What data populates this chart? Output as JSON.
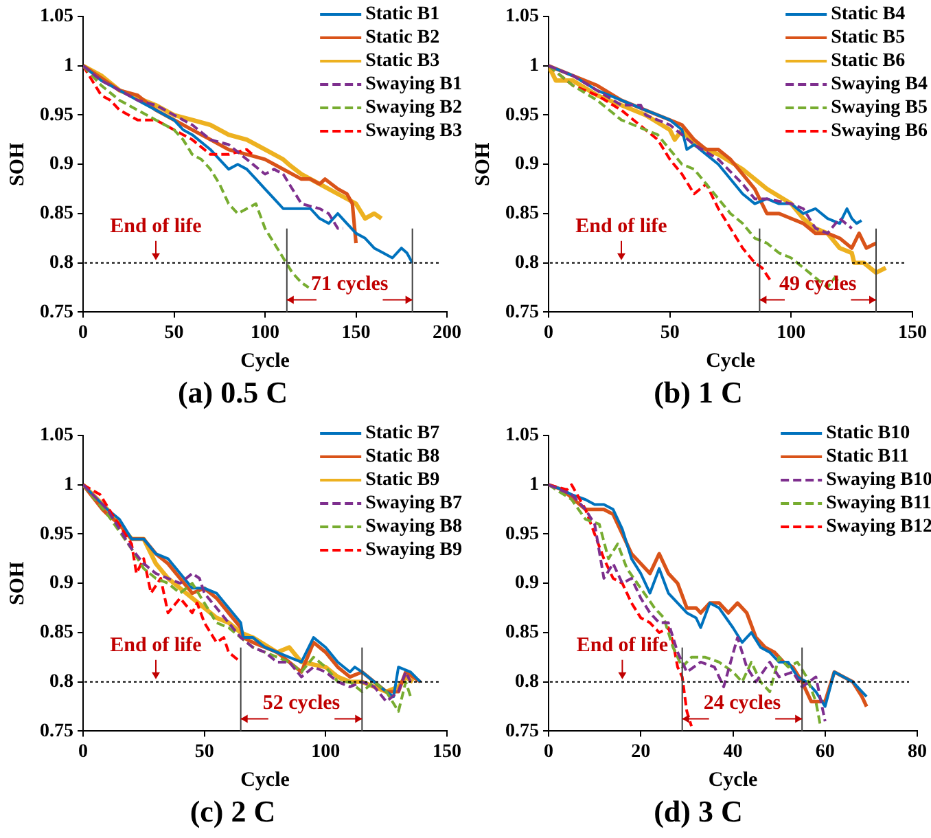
{
  "chart_data": [
    {
      "type": "line",
      "title": "(a) 0.5 C",
      "xlabel": "Cycle",
      "ylabel": "SOH",
      "xlim": [
        0,
        200
      ],
      "ylim": [
        0.75,
        1.05
      ],
      "xticks": [
        0,
        50,
        100,
        150,
        200
      ],
      "yticks": [
        0.75,
        0.8,
        0.85,
        0.9,
        0.95,
        1,
        1.05
      ],
      "grid": false,
      "legend": "top right",
      "series": [
        {
          "name": "Static B1",
          "color": "#0072bd",
          "line_style": "solid",
          "x": [
            0,
            10,
            20,
            30,
            40,
            50,
            55,
            60,
            70,
            75,
            80,
            85,
            90,
            95,
            100,
            105,
            110,
            115,
            120,
            125,
            130,
            135,
            140,
            145,
            150,
            155,
            160,
            165,
            170,
            175,
            178,
            181
          ],
          "values": [
            1,
            0.985,
            0.975,
            0.965,
            0.955,
            0.945,
            0.935,
            0.93,
            0.915,
            0.905,
            0.895,
            0.9,
            0.895,
            0.885,
            0.875,
            0.865,
            0.855,
            0.855,
            0.855,
            0.855,
            0.845,
            0.84,
            0.85,
            0.84,
            0.83,
            0.825,
            0.815,
            0.81,
            0.805,
            0.815,
            0.81,
            0.8
          ]
        },
        {
          "name": "Static B2",
          "color": "#d95319",
          "line_style": "solid",
          "x": [
            0,
            20,
            30,
            40,
            50,
            60,
            70,
            80,
            90,
            100,
            110,
            115,
            120,
            125,
            130,
            133,
            140,
            145,
            148,
            150
          ],
          "values": [
            1,
            0.975,
            0.97,
            0.955,
            0.945,
            0.935,
            0.925,
            0.915,
            0.91,
            0.905,
            0.895,
            0.89,
            0.885,
            0.885,
            0.88,
            0.885,
            0.875,
            0.87,
            0.86,
            0.82
          ]
        },
        {
          "name": "Static B3",
          "color": "#edb120",
          "line_style": "solid",
          "x": [
            0,
            10,
            20,
            40,
            50,
            60,
            70,
            80,
            90,
            100,
            110,
            113,
            120,
            130,
            140,
            150,
            155,
            160,
            164
          ],
          "values": [
            1,
            0.99,
            0.975,
            0.96,
            0.95,
            0.945,
            0.94,
            0.93,
            0.925,
            0.915,
            0.905,
            0.9,
            0.89,
            0.88,
            0.87,
            0.86,
            0.845,
            0.85,
            0.845
          ]
        },
        {
          "name": "Swaying B1",
          "color": "#7e2f8e",
          "line_style": "dashed",
          "x": [
            0,
            10,
            20,
            30,
            40,
            50,
            60,
            70,
            80,
            90,
            100,
            105,
            110,
            120,
            130,
            135,
            140,
            143
          ],
          "values": [
            1,
            0.985,
            0.975,
            0.965,
            0.96,
            0.95,
            0.94,
            0.925,
            0.92,
            0.905,
            0.89,
            0.895,
            0.89,
            0.86,
            0.855,
            0.85,
            0.835,
            0.835
          ]
        },
        {
          "name": "Swaying B2",
          "color": "#77ac30",
          "line_style": "dashed",
          "x": [
            0,
            10,
            20,
            30,
            40,
            50,
            55,
            60,
            65,
            70,
            75,
            80,
            85,
            90,
            95,
            100,
            105,
            110,
            115,
            120,
            124
          ],
          "values": [
            1,
            0.98,
            0.965,
            0.955,
            0.945,
            0.935,
            0.925,
            0.91,
            0.905,
            0.895,
            0.88,
            0.86,
            0.85,
            0.855,
            0.86,
            0.835,
            0.82,
            0.805,
            0.79,
            0.78,
            0.775
          ]
        },
        {
          "name": "Swaying B3",
          "color": "#ff0000",
          "line_style": "dashed",
          "x": [
            0,
            5,
            10,
            15,
            20,
            30,
            40,
            50,
            55,
            60,
            70,
            80,
            90,
            93
          ],
          "values": [
            1,
            0.985,
            0.97,
            0.965,
            0.955,
            0.945,
            0.945,
            0.935,
            0.93,
            0.925,
            0.91,
            0.91,
            0.915,
            0.91
          ]
        }
      ],
      "ref_lines": [
        {
          "axis": "y",
          "value": 0.8,
          "label": "End of life",
          "color": "#000000",
          "line_style": "dotted"
        },
        {
          "axis": "x",
          "value": 112,
          "color": "#404040"
        },
        {
          "axis": "x",
          "value": 181,
          "color": "#404040"
        }
      ],
      "annotations": [
        "71 cycles"
      ]
    },
    {
      "type": "line",
      "title": "(b) 1 C",
      "xlabel": "Cycle",
      "ylabel": "SOH",
      "xlim": [
        0,
        150
      ],
      "ylim": [
        0.75,
        1.05
      ],
      "xticks": [
        0,
        50,
        100,
        150
      ],
      "yticks": [
        0.75,
        0.8,
        0.85,
        0.9,
        0.95,
        1,
        1.05
      ],
      "grid": false,
      "legend": "top right",
      "series": [
        {
          "name": "Static B4",
          "color": "#0072bd",
          "line_style": "solid",
          "x": [
            0,
            10,
            20,
            30,
            40,
            45,
            50,
            55,
            57,
            60,
            65,
            70,
            75,
            80,
            85,
            90,
            95,
            100,
            105,
            110,
            115,
            120,
            123,
            125,
            127,
            129
          ],
          "values": [
            1,
            0.99,
            0.975,
            0.965,
            0.955,
            0.95,
            0.945,
            0.935,
            0.915,
            0.92,
            0.91,
            0.9,
            0.885,
            0.87,
            0.86,
            0.865,
            0.86,
            0.86,
            0.85,
            0.855,
            0.845,
            0.84,
            0.855,
            0.845,
            0.84,
            0.843
          ]
        },
        {
          "name": "Static B5",
          "color": "#d95319",
          "line_style": "solid",
          "x": [
            0,
            10,
            20,
            30,
            40,
            50,
            55,
            60,
            65,
            70,
            75,
            80,
            85,
            90,
            95,
            100,
            105,
            110,
            115,
            120,
            125,
            128,
            131,
            135
          ],
          "values": [
            1,
            0.99,
            0.98,
            0.965,
            0.955,
            0.945,
            0.94,
            0.925,
            0.915,
            0.915,
            0.905,
            0.89,
            0.875,
            0.85,
            0.85,
            0.845,
            0.84,
            0.83,
            0.83,
            0.825,
            0.815,
            0.83,
            0.815,
            0.82
          ]
        },
        {
          "name": "Static B6",
          "color": "#edb120",
          "line_style": "solid",
          "x": [
            0,
            3,
            10,
            20,
            30,
            40,
            50,
            52,
            55,
            60,
            70,
            80,
            90,
            100,
            105,
            110,
            115,
            120,
            125,
            126,
            130,
            135,
            139
          ],
          "values": [
            1,
            0.985,
            0.985,
            0.97,
            0.96,
            0.95,
            0.935,
            0.925,
            0.935,
            0.92,
            0.91,
            0.895,
            0.875,
            0.86,
            0.845,
            0.835,
            0.83,
            0.815,
            0.81,
            0.8,
            0.8,
            0.79,
            0.795
          ]
        },
        {
          "name": "Swaying B4",
          "color": "#7e2f8e",
          "line_style": "dashed",
          "x": [
            0,
            10,
            20,
            30,
            38,
            40,
            50,
            60,
            70,
            80,
            85,
            90,
            100,
            105,
            110,
            115,
            120,
            125
          ],
          "values": [
            1,
            0.99,
            0.975,
            0.96,
            0.96,
            0.95,
            0.94,
            0.92,
            0.905,
            0.88,
            0.865,
            0.865,
            0.86,
            0.855,
            0.835,
            0.83,
            0.845,
            0.835
          ]
        },
        {
          "name": "Swaying B5",
          "color": "#77ac30",
          "line_style": "dashed",
          "x": [
            0,
            10,
            20,
            25,
            30,
            40,
            45,
            50,
            55,
            60,
            65,
            70,
            75,
            80,
            85,
            90,
            95,
            100,
            105,
            110,
            115,
            118,
            120
          ],
          "values": [
            1,
            0.98,
            0.965,
            0.955,
            0.945,
            0.935,
            0.93,
            0.915,
            0.9,
            0.895,
            0.88,
            0.865,
            0.85,
            0.84,
            0.825,
            0.82,
            0.81,
            0.805,
            0.795,
            0.785,
            0.775,
            0.785,
            0.78
          ]
        },
        {
          "name": "Swaying B6",
          "color": "#ff0000",
          "line_style": "dashed",
          "x": [
            0,
            5,
            10,
            20,
            30,
            40,
            45,
            50,
            55,
            60,
            65,
            70,
            75,
            80,
            85,
            88,
            92
          ],
          "values": [
            1,
            0.99,
            0.98,
            0.97,
            0.955,
            0.935,
            0.925,
            0.905,
            0.89,
            0.87,
            0.88,
            0.855,
            0.835,
            0.815,
            0.8,
            0.795,
            0.78
          ]
        }
      ],
      "ref_lines": [
        {
          "axis": "y",
          "value": 0.8,
          "label": "End of life",
          "color": "#000000",
          "line_style": "dotted"
        },
        {
          "axis": "x",
          "value": 87,
          "color": "#404040"
        },
        {
          "axis": "x",
          "value": 135,
          "color": "#404040"
        }
      ],
      "annotations": [
        "49 cycles"
      ]
    },
    {
      "type": "line",
      "title": "(c) 2 C",
      "xlabel": "Cycle",
      "ylabel": "SOH",
      "xlim": [
        0,
        150
      ],
      "ylim": [
        0.75,
        1.05
      ],
      "xticks": [
        0,
        50,
        100,
        150
      ],
      "yticks": [
        0.75,
        0.8,
        0.85,
        0.9,
        0.95,
        1,
        1.05
      ],
      "grid": false,
      "legend": "top right",
      "series": [
        {
          "name": "Static B7",
          "color": "#0072bd",
          "line_style": "solid",
          "x": [
            0,
            10,
            15,
            20,
            25,
            30,
            35,
            40,
            45,
            50,
            55,
            60,
            65,
            66,
            70,
            75,
            80,
            85,
            90,
            95,
            100,
            105,
            110,
            112,
            115,
            120,
            125,
            128,
            130,
            135,
            139
          ],
          "values": [
            1,
            0.975,
            0.965,
            0.945,
            0.945,
            0.93,
            0.925,
            0.91,
            0.895,
            0.895,
            0.89,
            0.875,
            0.86,
            0.845,
            0.845,
            0.835,
            0.83,
            0.825,
            0.82,
            0.845,
            0.835,
            0.82,
            0.81,
            0.815,
            0.81,
            0.8,
            0.79,
            0.785,
            0.815,
            0.81,
            0.8
          ]
        },
        {
          "name": "Static B8",
          "color": "#d95319",
          "line_style": "solid",
          "x": [
            0,
            8,
            10,
            15,
            20,
            25,
            30,
            35,
            40,
            45,
            50,
            55,
            60,
            65,
            66,
            70,
            80,
            85,
            90,
            95,
            100,
            105,
            110,
            115,
            120,
            125,
            130,
            133,
            139
          ],
          "values": [
            1,
            0.975,
            0.97,
            0.96,
            0.945,
            0.945,
            0.93,
            0.92,
            0.905,
            0.89,
            0.895,
            0.885,
            0.87,
            0.855,
            0.845,
            0.84,
            0.83,
            0.82,
            0.81,
            0.84,
            0.83,
            0.815,
            0.805,
            0.81,
            0.8,
            0.79,
            0.79,
            0.81,
            0.8
          ]
        },
        {
          "name": "Static B9",
          "color": "#edb120",
          "line_style": "solid",
          "x": [
            0,
            10,
            20,
            25,
            30,
            35,
            40,
            45,
            50,
            55,
            60,
            65,
            70,
            80,
            85,
            90,
            100,
            105,
            110,
            115,
            120,
            125,
            130,
            133,
            136
          ],
          "values": [
            1,
            0.975,
            0.945,
            0.945,
            0.92,
            0.905,
            0.895,
            0.885,
            0.875,
            0.865,
            0.86,
            0.85,
            0.845,
            0.83,
            0.835,
            0.82,
            0.815,
            0.805,
            0.8,
            0.8,
            0.795,
            0.79,
            0.795,
            0.805,
            0.8
          ]
        },
        {
          "name": "Swaying B7",
          "color": "#7e2f8e",
          "line_style": "dashed",
          "x": [
            0,
            10,
            20,
            25,
            30,
            35,
            40,
            45,
            48,
            50,
            55,
            60,
            65,
            70,
            75,
            80,
            85,
            90,
            95,
            100,
            105,
            110,
            115,
            120,
            125,
            130,
            133,
            135
          ],
          "values": [
            1,
            0.975,
            0.935,
            0.92,
            0.91,
            0.905,
            0.9,
            0.91,
            0.905,
            0.89,
            0.875,
            0.86,
            0.845,
            0.835,
            0.83,
            0.82,
            0.82,
            0.805,
            0.815,
            0.81,
            0.8,
            0.795,
            0.8,
            0.795,
            0.78,
            0.79,
            0.81,
            0.8
          ]
        },
        {
          "name": "Swaying B8",
          "color": "#77ac30",
          "line_style": "dashed",
          "x": [
            0,
            10,
            20,
            25,
            30,
            35,
            40,
            45,
            50,
            55,
            60,
            65,
            70,
            80,
            85,
            90,
            95,
            100,
            105,
            110,
            115,
            120,
            125,
            130,
            133,
            135
          ],
          "values": [
            1,
            0.97,
            0.935,
            0.915,
            0.905,
            0.9,
            0.89,
            0.9,
            0.88,
            0.86,
            0.855,
            0.845,
            0.835,
            0.825,
            0.82,
            0.81,
            0.825,
            0.815,
            0.8,
            0.8,
            0.79,
            0.8,
            0.79,
            0.77,
            0.8,
            0.785
          ]
        },
        {
          "name": "Swaying B9",
          "color": "#ff0000",
          "line_style": "dashed",
          "x": [
            0,
            7,
            12,
            20,
            22,
            25,
            28,
            32,
            35,
            40,
            45,
            47,
            50,
            55,
            58,
            60,
            65
          ],
          "values": [
            1,
            0.99,
            0.97,
            0.94,
            0.91,
            0.925,
            0.89,
            0.905,
            0.87,
            0.885,
            0.87,
            0.88,
            0.86,
            0.84,
            0.845,
            0.83,
            0.82
          ]
        }
      ],
      "ref_lines": [
        {
          "axis": "y",
          "value": 0.8,
          "label": "End of life",
          "color": "#000000",
          "line_style": "dotted"
        },
        {
          "axis": "x",
          "value": 65,
          "color": "#404040"
        },
        {
          "axis": "x",
          "value": 115,
          "color": "#404040"
        }
      ],
      "annotations": [
        "52 cycles"
      ]
    },
    {
      "type": "line",
      "title": "(d) 3 C",
      "xlabel": "Cycle",
      "xlim": [
        0,
        80
      ],
      "ylim": [
        0.75,
        1.05
      ],
      "xticks": [
        0,
        20,
        40,
        60,
        80
      ],
      "yticks": [
        0.75,
        0.8,
        0.85,
        0.9,
        0.95,
        1,
        1.05
      ],
      "grid": false,
      "legend": "top right",
      "series": [
        {
          "name": "Static B10",
          "color": "#0072bd",
          "line_style": "solid",
          "x": [
            0,
            3,
            5,
            8,
            10,
            12,
            14,
            16,
            18,
            20,
            22,
            24,
            26,
            28,
            30,
            32,
            33,
            35,
            37,
            40,
            42,
            44,
            46,
            48,
            50,
            52,
            54,
            56,
            58,
            60,
            62,
            64,
            66,
            68,
            69
          ],
          "values": [
            1,
            0.995,
            0.99,
            0.985,
            0.98,
            0.98,
            0.975,
            0.955,
            0.925,
            0.91,
            0.89,
            0.915,
            0.89,
            0.88,
            0.87,
            0.865,
            0.855,
            0.88,
            0.875,
            0.855,
            0.84,
            0.85,
            0.835,
            0.83,
            0.82,
            0.82,
            0.805,
            0.8,
            0.79,
            0.775,
            0.81,
            0.805,
            0.8,
            0.79,
            0.785
          ]
        },
        {
          "name": "Static B11",
          "color": "#d95319",
          "line_style": "solid",
          "x": [
            0,
            3,
            8,
            12,
            14,
            16,
            18,
            20,
            22,
            24,
            26,
            28,
            30,
            32,
            33,
            35,
            37,
            39,
            41,
            43,
            45,
            47,
            49,
            51,
            53,
            55,
            57,
            60,
            62,
            64,
            66,
            68,
            69
          ],
          "values": [
            1,
            0.995,
            0.975,
            0.975,
            0.97,
            0.95,
            0.93,
            0.92,
            0.91,
            0.93,
            0.91,
            0.9,
            0.875,
            0.875,
            0.87,
            0.88,
            0.88,
            0.87,
            0.88,
            0.87,
            0.845,
            0.835,
            0.83,
            0.82,
            0.815,
            0.8,
            0.78,
            0.78,
            0.81,
            0.805,
            0.8,
            0.785,
            0.775
          ]
        },
        {
          "name": "Swaying B10",
          "color": "#7e2f8e",
          "line_style": "dashed",
          "x": [
            0,
            5,
            8,
            10,
            12,
            14,
            16,
            18,
            20,
            22,
            24,
            26,
            28,
            30,
            33,
            36,
            38,
            41,
            43,
            45,
            48,
            50,
            53,
            55,
            58,
            60
          ],
          "values": [
            1,
            0.99,
            0.975,
            0.96,
            0.905,
            0.92,
            0.9,
            0.905,
            0.885,
            0.87,
            0.86,
            0.86,
            0.83,
            0.81,
            0.82,
            0.815,
            0.795,
            0.845,
            0.815,
            0.8,
            0.82,
            0.805,
            0.81,
            0.795,
            0.805,
            0.76
          ]
        },
        {
          "name": "Swaying B11",
          "color": "#77ac30",
          "line_style": "dashed",
          "x": [
            0,
            5,
            8,
            11,
            13,
            15,
            17,
            20,
            23,
            25,
            27,
            29,
            31,
            34,
            37,
            40,
            42,
            44,
            46,
            48,
            50,
            52,
            54,
            56,
            58,
            59
          ],
          "values": [
            1,
            0.985,
            0.965,
            0.96,
            0.925,
            0.94,
            0.915,
            0.895,
            0.875,
            0.865,
            0.835,
            0.815,
            0.825,
            0.825,
            0.82,
            0.81,
            0.8,
            0.82,
            0.8,
            0.79,
            0.825,
            0.815,
            0.82,
            0.805,
            0.78,
            0.755
          ]
        },
        {
          "name": "Swaying B12",
          "color": "#ff0000",
          "line_style": "dashed",
          "x": [
            0,
            4,
            5,
            8,
            12,
            14,
            16,
            18,
            20,
            22,
            24,
            26,
            27,
            28,
            29,
            30,
            31
          ],
          "values": [
            1,
            0.995,
            1,
            0.975,
            0.925,
            0.905,
            0.9,
            0.88,
            0.865,
            0.86,
            0.85,
            0.855,
            0.84,
            0.815,
            0.805,
            0.77,
            0.755
          ]
        }
      ],
      "ref_lines": [
        {
          "axis": "y",
          "value": 0.8,
          "label": "End of life",
          "color": "#000000",
          "line_style": "dotted"
        },
        {
          "axis": "x",
          "value": 29,
          "color": "#404040"
        },
        {
          "axis": "x",
          "value": 55,
          "color": "#404040"
        }
      ],
      "annotations": [
        "24 cycles"
      ]
    }
  ]
}
